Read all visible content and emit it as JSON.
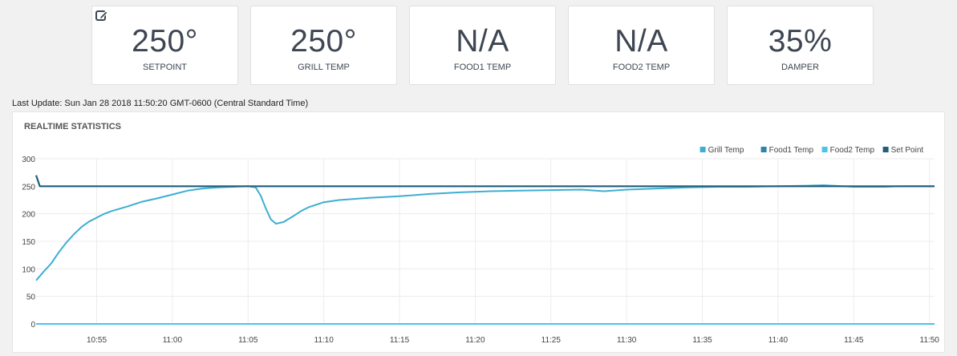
{
  "cards": [
    {
      "value": "250°",
      "label": "SETPOINT"
    },
    {
      "value": "250°",
      "label": "GRILL TEMP"
    },
    {
      "value": "N/A",
      "label": "FOOD1 TEMP"
    },
    {
      "value": "N/A",
      "label": "FOOD2 TEMP"
    },
    {
      "value": "35%",
      "label": "DAMPER"
    }
  ],
  "icons": {
    "edit": "edit-icon"
  },
  "last_update": "Last Update: Sun Jan 28 2018 11:50:20 GMT-0600 (Central Standard Time)",
  "panel": {
    "title": "REALTIME STATISTICS"
  },
  "colors": {
    "grill": "#3eaed3",
    "food1": "#2c84a8",
    "food2": "#4ec3e8",
    "setpoint": "#1f5f7a"
  },
  "chart_data": {
    "type": "line",
    "title": "REALTIME STATISTICS",
    "xlabel": "",
    "ylabel": "",
    "ylim": [
      0,
      300
    ],
    "yticks": [
      "0",
      "50",
      "100",
      "150",
      "200",
      "250",
      "300"
    ],
    "xticks": [
      "10:55",
      "11:00",
      "11:05",
      "11:10",
      "11:15",
      "11:20",
      "11:25",
      "11:30",
      "11:35",
      "11:40",
      "11:45",
      "11:50"
    ],
    "xlim": [
      "10:51:00",
      "11:50:20"
    ],
    "grid": true,
    "legend_position": "top-right",
    "series": [
      {
        "name": "Grill Temp",
        "points": [
          [
            "10:51:00",
            79
          ],
          [
            "10:51:30",
            95
          ],
          [
            "10:52:00",
            110
          ],
          [
            "10:52:30",
            130
          ],
          [
            "10:53:00",
            148
          ],
          [
            "10:53:30",
            163
          ],
          [
            "10:54:00",
            176
          ],
          [
            "10:54:30",
            186
          ],
          [
            "10:55:00",
            193
          ],
          [
            "10:55:30",
            200
          ],
          [
            "10:56:00",
            205
          ],
          [
            "10:57:00",
            213
          ],
          [
            "10:58:00",
            222
          ],
          [
            "10:59:00",
            228
          ],
          [
            "11:00:00",
            235
          ],
          [
            "11:01:00",
            242
          ],
          [
            "11:02:00",
            246
          ],
          [
            "11:03:00",
            248
          ],
          [
            "11:04:00",
            249
          ],
          [
            "11:05:00",
            250
          ],
          [
            "11:05:30",
            248
          ],
          [
            "11:05:50",
            233
          ],
          [
            "11:06:10",
            210
          ],
          [
            "11:06:30",
            190
          ],
          [
            "11:06:50",
            182
          ],
          [
            "11:07:20",
            185
          ],
          [
            "11:08:00",
            196
          ],
          [
            "11:08:30",
            205
          ],
          [
            "11:09:00",
            212
          ],
          [
            "11:10:00",
            221
          ],
          [
            "11:11:00",
            225
          ],
          [
            "11:12:00",
            227
          ],
          [
            "11:13:00",
            229
          ],
          [
            "11:15:00",
            232
          ],
          [
            "11:17:00",
            236
          ],
          [
            "11:19:00",
            239
          ],
          [
            "11:21:00",
            241
          ],
          [
            "11:23:00",
            242
          ],
          [
            "11:25:00",
            243
          ],
          [
            "11:27:00",
            244
          ],
          [
            "11:28:30",
            241
          ],
          [
            "11:30:00",
            244
          ],
          [
            "11:32:00",
            246
          ],
          [
            "11:34:00",
            248
          ],
          [
            "11:36:00",
            249
          ],
          [
            "11:38:00",
            249
          ],
          [
            "11:40:00",
            250
          ],
          [
            "11:42:00",
            251
          ],
          [
            "11:43:00",
            252
          ],
          [
            "11:45:00",
            249
          ],
          [
            "11:47:00",
            249
          ],
          [
            "11:48:00",
            250
          ],
          [
            "11:50:20",
            250
          ]
        ]
      },
      {
        "name": "Food1 Temp",
        "points": [
          [
            "10:51:00",
            0
          ],
          [
            "11:50:20",
            0
          ]
        ]
      },
      {
        "name": "Food2 Temp",
        "points": [
          [
            "10:51:00",
            0
          ],
          [
            "11:50:20",
            0
          ]
        ]
      },
      {
        "name": "Set Point",
        "points": [
          [
            "10:51:00",
            270
          ],
          [
            "10:51:15",
            250
          ],
          [
            "11:50:20",
            250
          ]
        ]
      }
    ]
  }
}
